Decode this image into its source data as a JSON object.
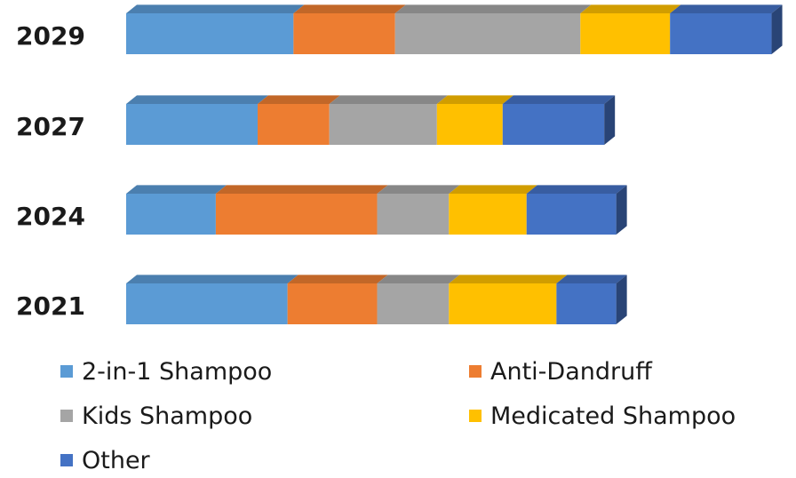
{
  "chart_data": {
    "type": "bar",
    "orientation": "horizontal",
    "stacked": true,
    "style": "3d",
    "categories": [
      "2029",
      "2027",
      "2024",
      "2021"
    ],
    "series": [
      {
        "name": "2-in-1 Shampoo",
        "color": "#5b9bd5",
        "values": [
          28,
          22,
          15,
          27
        ]
      },
      {
        "name": "Anti-Dandruff",
        "color": "#ed7d31",
        "values": [
          17,
          12,
          27,
          15
        ]
      },
      {
        "name": "Kids Shampoo",
        "color": "#a5a5a5",
        "values": [
          31,
          18,
          12,
          12
        ]
      },
      {
        "name": "Medicated Shampoo",
        "color": "#ffc000",
        "values": [
          15,
          11,
          13,
          18
        ]
      },
      {
        "name": "Other",
        "color": "#4472c4",
        "values": [
          17,
          17,
          15,
          10
        ]
      }
    ],
    "legend_position": "bottom",
    "grid": false,
    "xlim": [
      0,
      110
    ]
  }
}
